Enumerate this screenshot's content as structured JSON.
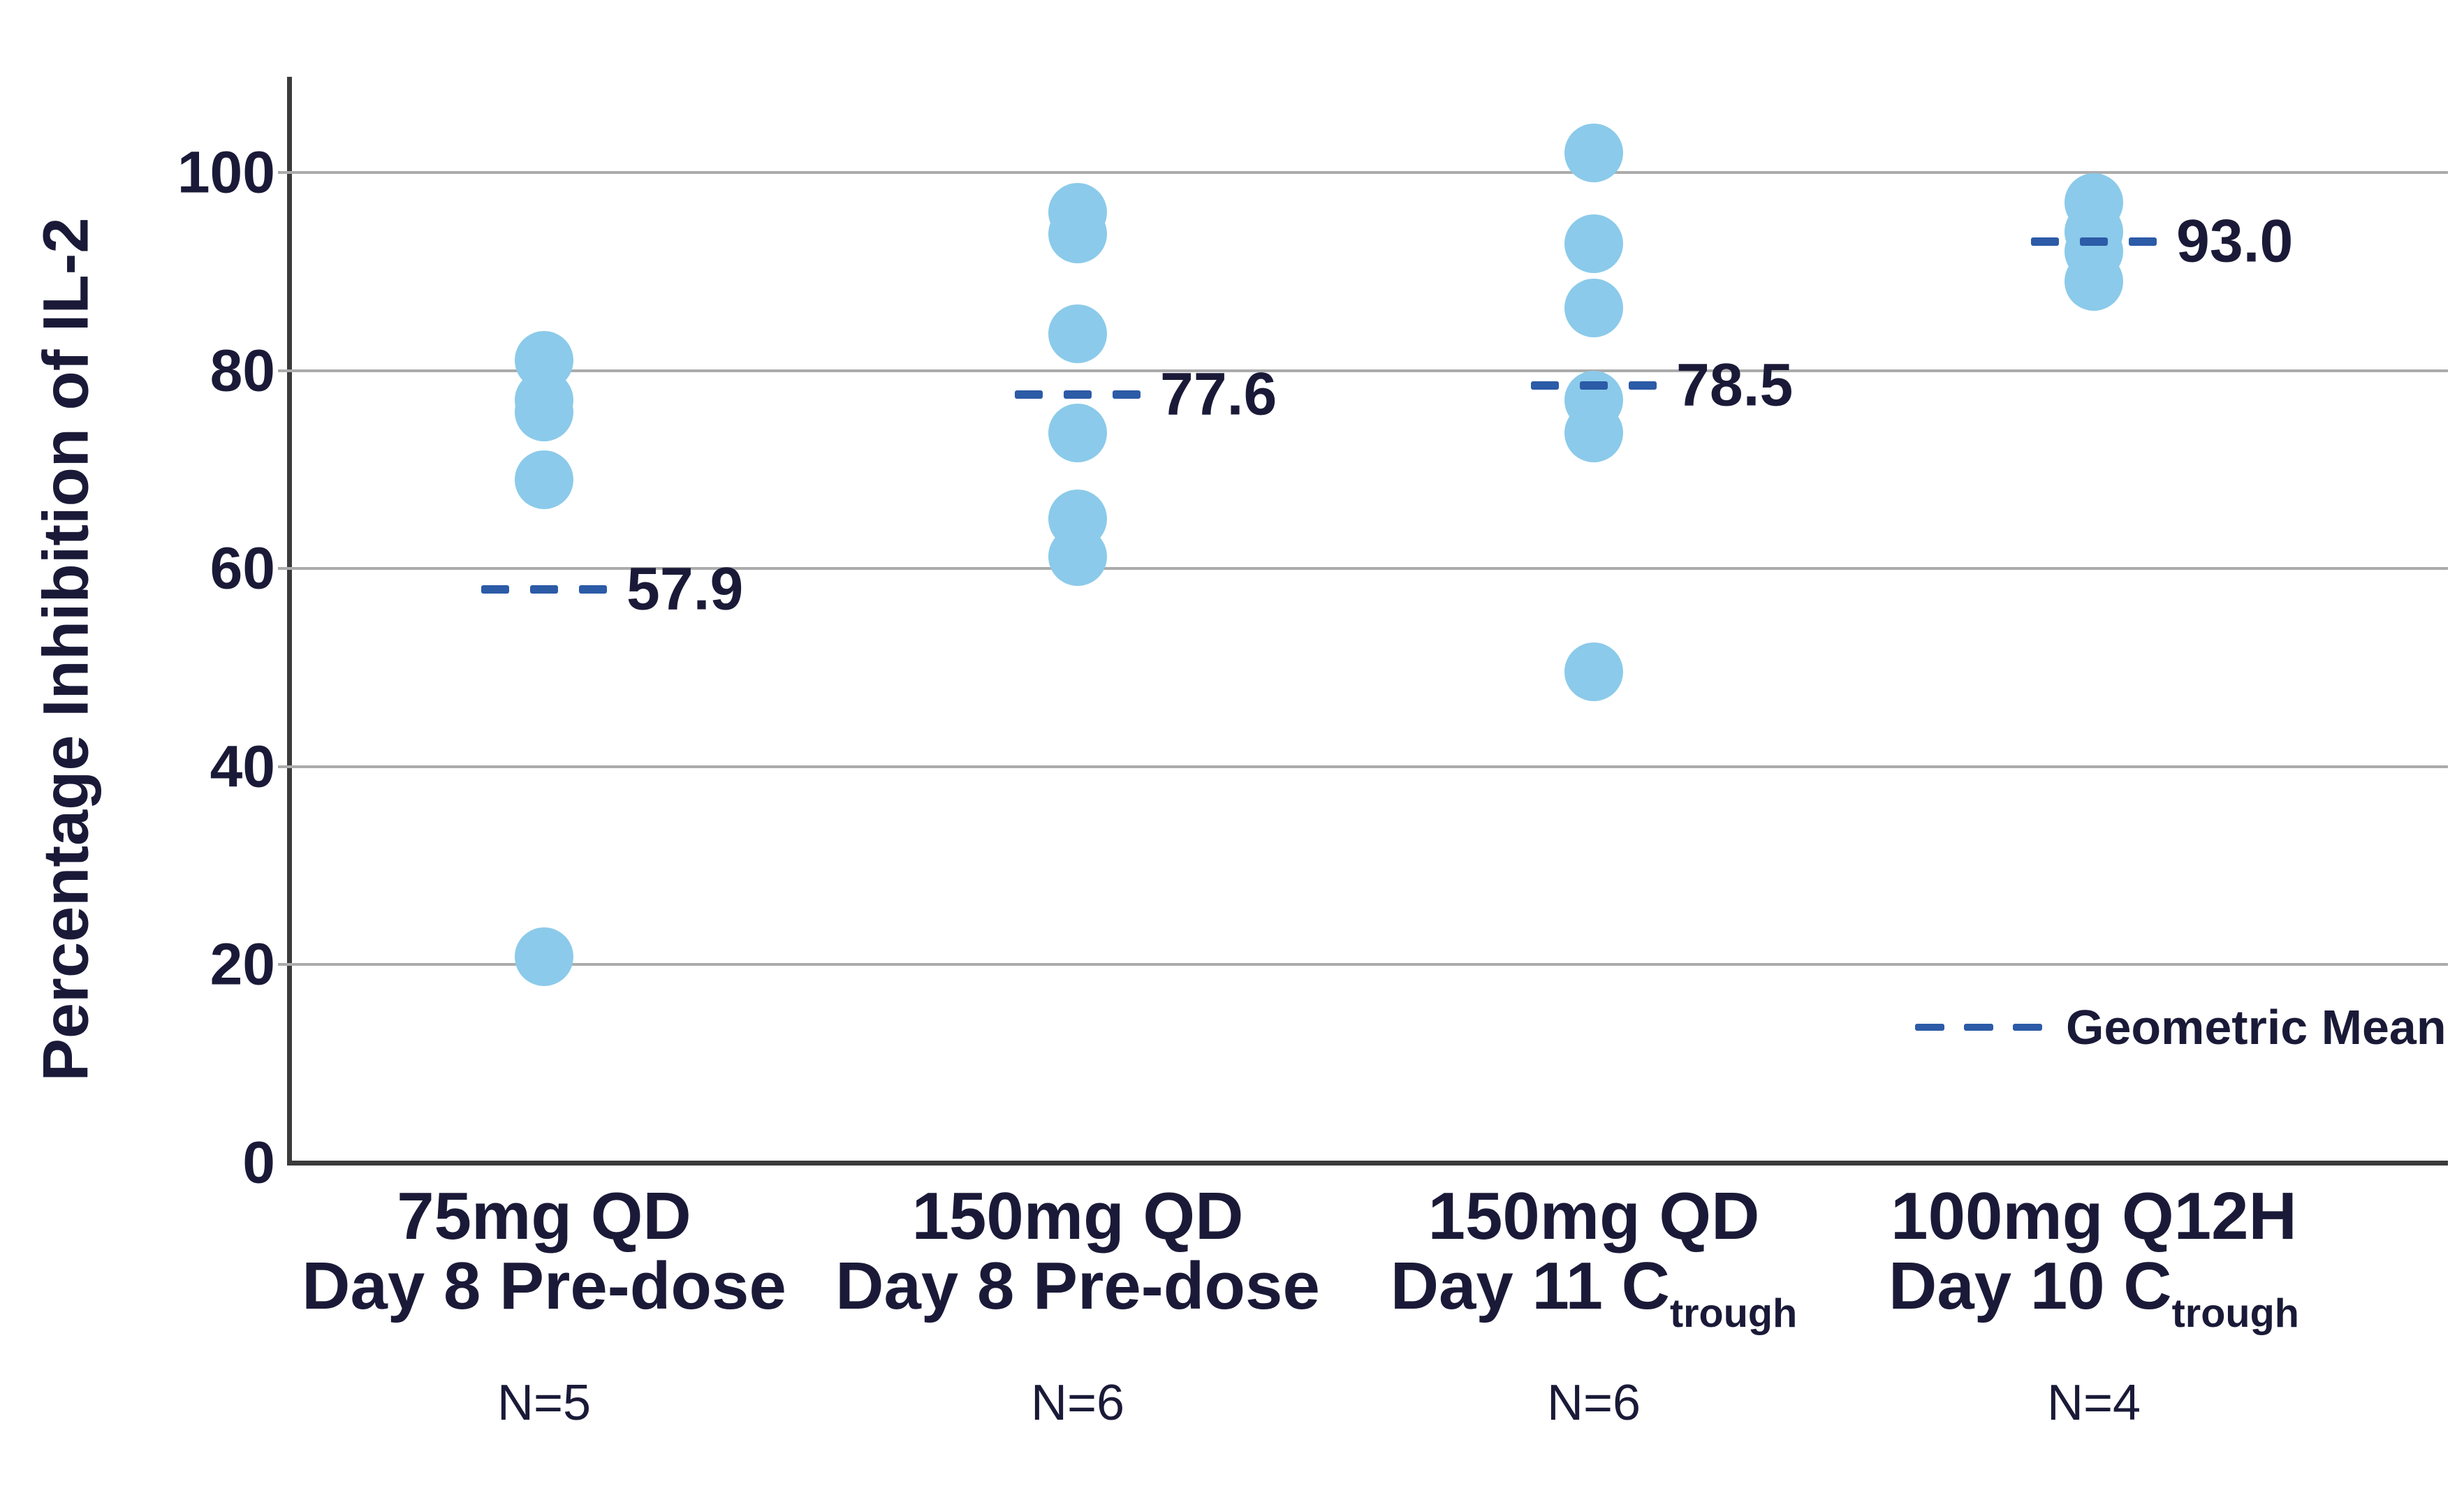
{
  "chart_data": {
    "type": "scatter",
    "subtype": "strip-plot-with-geometric-means",
    "ylabel": "Percentage Inhibition of IL-2",
    "yticks": [
      0,
      20,
      40,
      60,
      80,
      100
    ],
    "ylim": [
      0,
      109
    ],
    "grid": "horizontal",
    "legend_label": "Geometric Mean",
    "legend_position": "bottom-right",
    "colors": {
      "point_fill": "#8bcaea",
      "mean_dash": "#2c5ba7",
      "text": "#1a1a38",
      "gridline": "#ababab",
      "axis": "#3b3b3b"
    },
    "groups": [
      {
        "label_line1": "75mg QD",
        "label_line2": "Day 8 Pre-dose",
        "label_line2_sub": "",
        "n_label": "N=5",
        "n": 5,
        "geometric_mean": 57.9,
        "geometric_mean_label": "57.9",
        "points": [
          81,
          77,
          75.8,
          69,
          20.8
        ]
      },
      {
        "label_line1": "150mg QD",
        "label_line2": "Day 8 Pre-dose",
        "label_line2_sub": "",
        "n_label": "N=6",
        "n": 6,
        "geometric_mean": 77.6,
        "geometric_mean_label": "77.6",
        "points": [
          96,
          93.8,
          83.7,
          73.7,
          65,
          61.2
        ]
      },
      {
        "label_line1": "150mg QD",
        "label_line2": "Day 11 C",
        "label_line2_sub": "trough",
        "n_label": "N=6",
        "n": 6,
        "geometric_mean": 78.5,
        "geometric_mean_label": "78.5",
        "points": [
          102,
          92.8,
          86.3,
          77,
          73.7,
          49.6
        ]
      },
      {
        "label_line1": "100mg Q12H",
        "label_line2": "Day 10 C",
        "label_line2_sub": "trough",
        "n_label": "N=4",
        "n": 4,
        "geometric_mean": 93.0,
        "geometric_mean_label": "93.0",
        "points": [
          97,
          94,
          92,
          89
        ]
      }
    ]
  }
}
